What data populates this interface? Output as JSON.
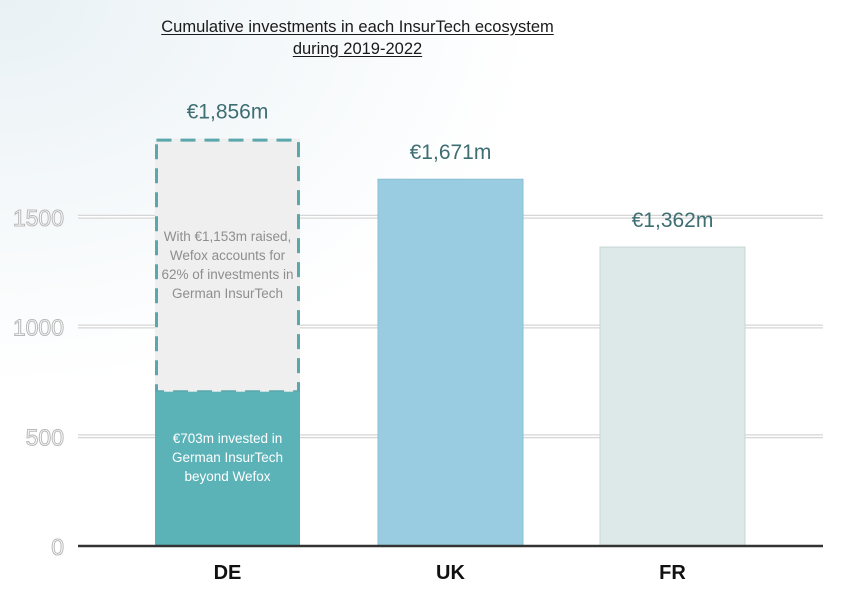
{
  "chart_data": {
    "type": "bar",
    "title_lines": [
      "Cumulative investments in each InsurTech ecosystem",
      "during 2019-2022"
    ],
    "categories": [
      "DE",
      "UK",
      "FR"
    ],
    "values": [
      1856,
      1671,
      1362
    ],
    "value_labels": [
      "€1,856m",
      "€1,671m",
      "€1,362m"
    ],
    "stacked_segments": {
      "DE": [
        {
          "value": 703,
          "label": "€703m invested in German InsurTech beyond Wefox",
          "color": "#5bb3b8"
        },
        {
          "value": 1153,
          "label": "With €1,153m raised, Wefox accounts for 62% of investments in German InsurTech",
          "color": "#efefef"
        }
      ]
    },
    "bar_colors": [
      "#5bb3b8",
      "#99cce0",
      "#dce9e8"
    ],
    "y_ticks": [
      "0",
      "500",
      "1000",
      "1500"
    ],
    "y_tick_values": [
      0,
      500,
      1000,
      1500
    ],
    "ylim": [
      0,
      1950
    ],
    "grid": true
  }
}
